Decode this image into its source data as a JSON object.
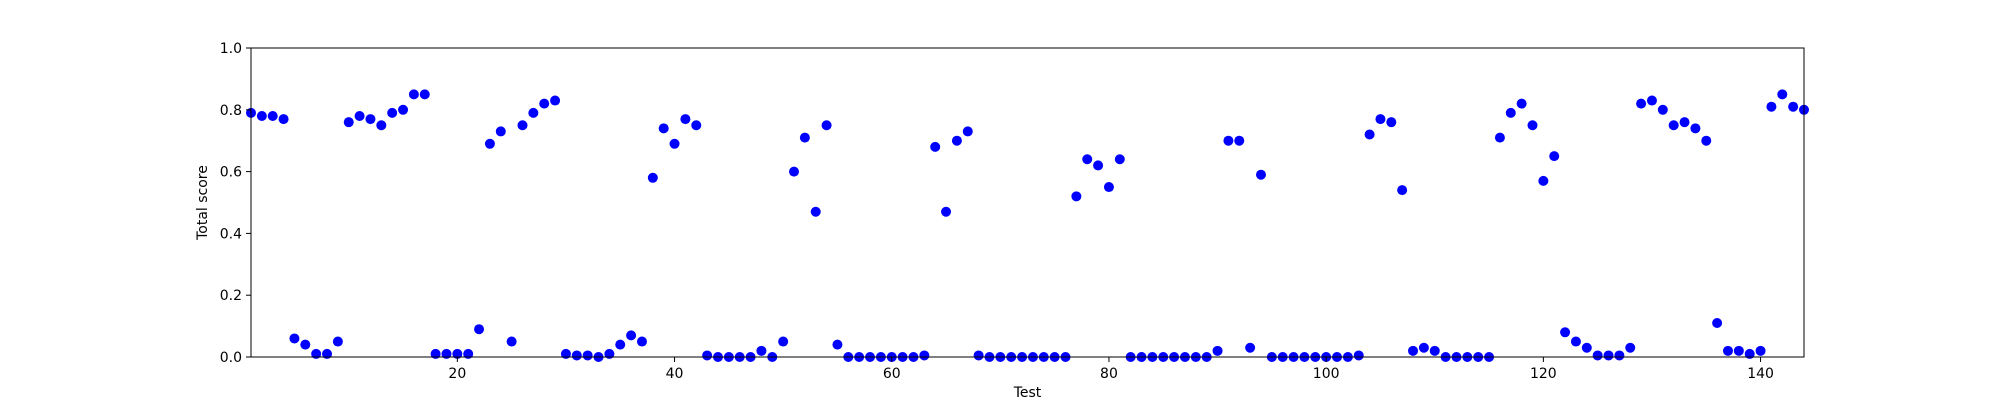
{
  "chart_data": {
    "type": "scatter",
    "title": "",
    "xlabel": "Test",
    "ylabel": "Total score",
    "xlim": [
      1,
      144
    ],
    "ylim": [
      0.0,
      1.0
    ],
    "xticks": [
      20,
      40,
      60,
      80,
      100,
      120,
      140
    ],
    "xtick_labels": [
      "20",
      "40",
      "60",
      "80",
      "100",
      "120",
      "140"
    ],
    "yticks": [
      0.0,
      0.2,
      0.4,
      0.6,
      0.8,
      1.0
    ],
    "ytick_labels": [
      "0.0",
      "0.2",
      "0.4",
      "0.6",
      "0.8",
      "1.0"
    ],
    "grid": false,
    "legend": null,
    "marker_color": "#0000ff",
    "series": [
      {
        "x": [
          1,
          2,
          3,
          4,
          5,
          6,
          7,
          8,
          9,
          10,
          11,
          12,
          13,
          14,
          15,
          16,
          17,
          18,
          19,
          20,
          21,
          22,
          23,
          24,
          25,
          26,
          27,
          28,
          29,
          30,
          31,
          32,
          33,
          34,
          35,
          36,
          37,
          38,
          39,
          40,
          41,
          42,
          43,
          44,
          45,
          46,
          47,
          48,
          49,
          50,
          51,
          52,
          53,
          54,
          55,
          56,
          57,
          58,
          59,
          60,
          61,
          62,
          63,
          64,
          65,
          66,
          67,
          68,
          69,
          70,
          71,
          72,
          73,
          74,
          75,
          76,
          77,
          78,
          79,
          80,
          81,
          82,
          83,
          84,
          85,
          86,
          87,
          88,
          89,
          90,
          91,
          92,
          93,
          94,
          95,
          96,
          97,
          98,
          99,
          100,
          101,
          102,
          103,
          104,
          105,
          106,
          107,
          108,
          109,
          110,
          111,
          112,
          113,
          114,
          115,
          116,
          117,
          118,
          119,
          120,
          121,
          122,
          123,
          124,
          125,
          126,
          127,
          128,
          129,
          130,
          131,
          132,
          133,
          134,
          135,
          136,
          137,
          138,
          139,
          140,
          141,
          142,
          143,
          144
        ],
        "y": [
          0.79,
          0.78,
          0.78,
          0.77,
          0.06,
          0.04,
          0.01,
          0.01,
          0.05,
          0.76,
          0.78,
          0.77,
          0.75,
          0.79,
          0.8,
          0.85,
          0.85,
          0.01,
          0.01,
          0.01,
          0.01,
          0.09,
          0.69,
          0.73,
          0.05,
          0.75,
          0.79,
          0.82,
          0.83,
          0.01,
          0.005,
          0.005,
          0.0,
          0.01,
          0.04,
          0.07,
          0.05,
          0.58,
          0.74,
          0.69,
          0.77,
          0.75,
          0.005,
          0.0,
          0.0,
          0.0,
          0.0,
          0.02,
          0.0,
          0.05,
          0.6,
          0.71,
          0.47,
          0.75,
          0.04,
          0.0,
          0.0,
          0.0,
          0.0,
          0.0,
          0.0,
          0.0,
          0.005,
          0.68,
          0.47,
          0.7,
          0.73,
          0.005,
          0.0,
          0.0,
          0.0,
          0.0,
          0.0,
          0.0,
          0.0,
          0.0,
          0.52,
          0.64,
          0.62,
          0.55,
          0.64,
          0.0,
          0.0,
          0.0,
          0.0,
          0.0,
          0.0,
          0.0,
          0.0,
          0.02,
          0.7,
          0.7,
          0.03,
          0.59,
          0.0,
          0.0,
          0.0,
          0.0,
          0.0,
          0.0,
          0.0,
          0.0,
          0.005,
          0.72,
          0.77,
          0.76,
          0.54,
          0.02,
          0.03,
          0.02,
          0.0,
          0.0,
          0.0,
          0.0,
          0.0,
          0.71,
          0.79,
          0.82,
          0.75,
          0.57,
          0.65,
          0.08,
          0.05,
          0.03,
          0.005,
          0.005,
          0.005,
          0.03,
          0.82,
          0.83,
          0.8,
          0.75,
          0.76,
          0.74,
          0.7,
          0.11,
          0.02,
          0.02,
          0.01,
          0.02,
          0.81,
          0.85,
          0.81,
          0.8
        ]
      }
    ]
  }
}
